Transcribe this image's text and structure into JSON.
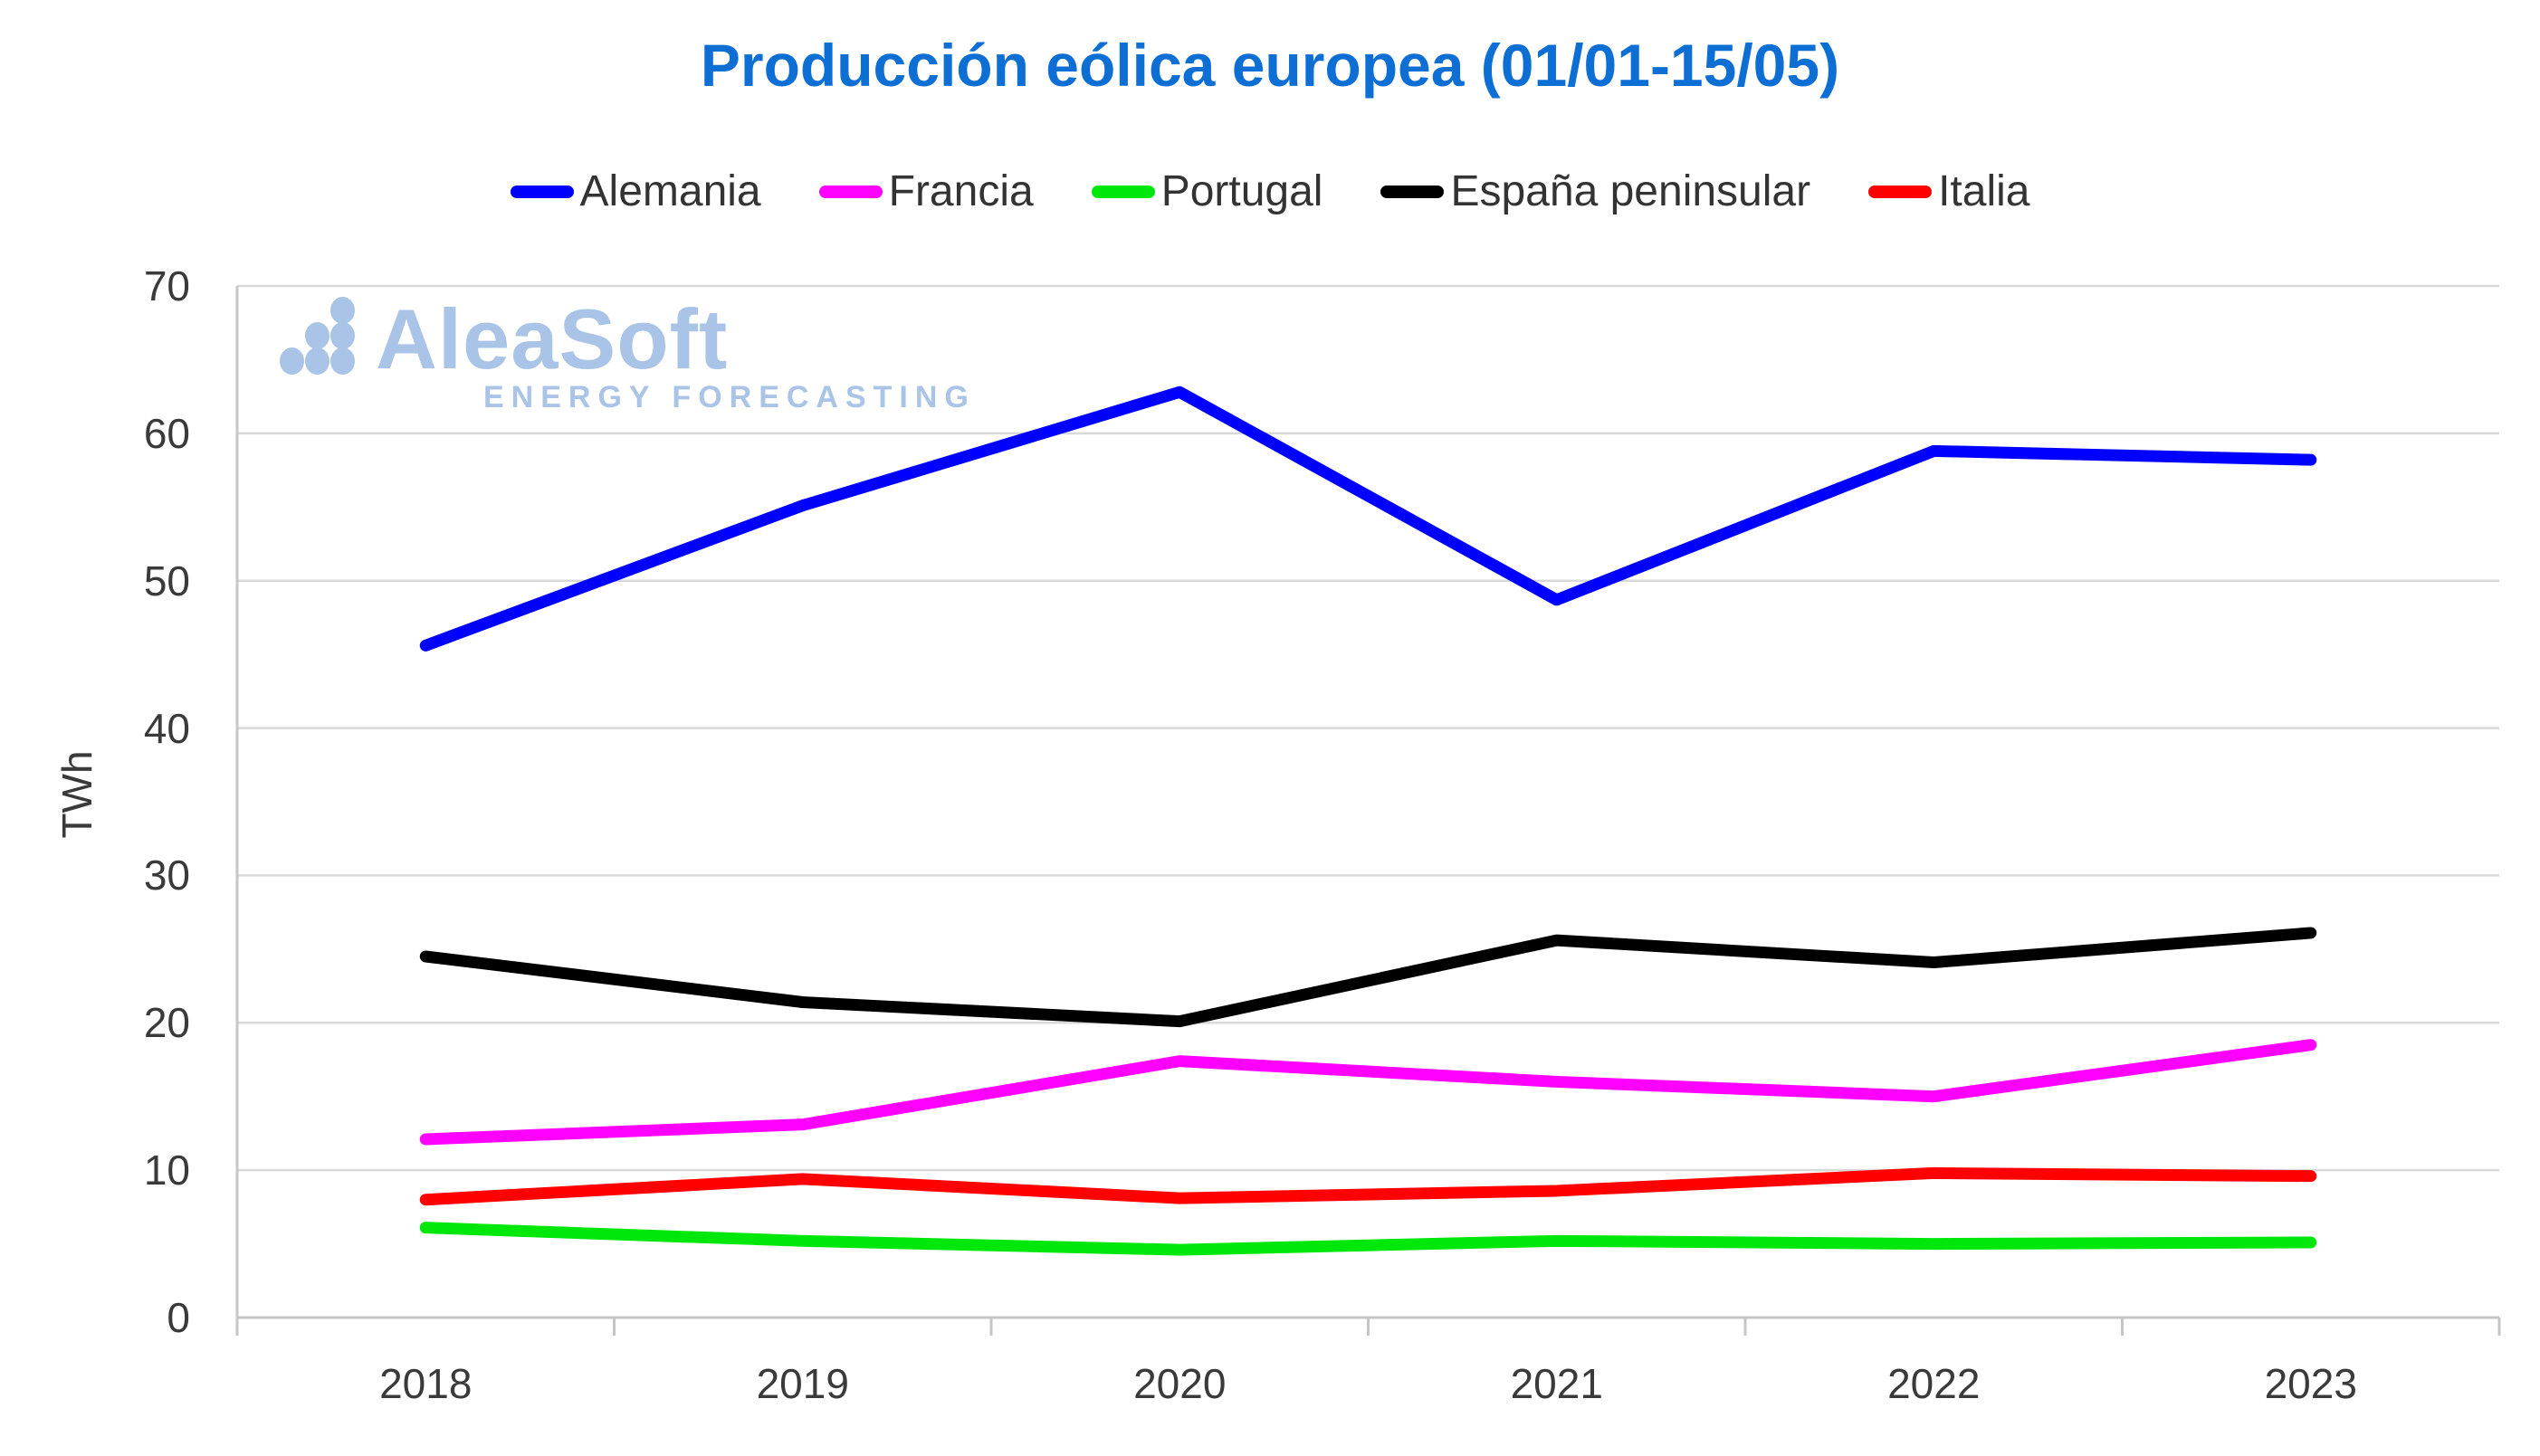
{
  "title": "Producción eólica europea (01/01-15/05)",
  "watermark": {
    "brand": "AleaSoft",
    "tagline": "ENERGY FORECASTING",
    "color": "#a9c4e6"
  },
  "colors": {
    "title": "#0d6ed3",
    "axis_text": "#3a3a3a",
    "legend_text": "#333333",
    "gridline": "#d8d8d8",
    "axis_line": "#c6c6c6"
  },
  "chart_data": {
    "type": "line",
    "title": "Producción eólica europea (01/01-15/05)",
    "xlabel": "",
    "ylabel": "TWh",
    "ylim": [
      0,
      70
    ],
    "ytick_step": 10,
    "grid": true,
    "legend_position": "top",
    "categories": [
      "2018",
      "2019",
      "2020",
      "2021",
      "2022",
      "2023"
    ],
    "series": [
      {
        "name": "Alemania",
        "color": "#0000fe",
        "values": [
          45.6,
          55.1,
          62.8,
          48.7,
          58.8,
          58.2
        ]
      },
      {
        "name": "Francia",
        "color": "#ff00fe",
        "values": [
          12.1,
          13.1,
          17.4,
          16.0,
          15.0,
          18.5
        ]
      },
      {
        "name": "Portugal",
        "color": "#00e80b",
        "values": [
          6.1,
          5.2,
          4.6,
          5.2,
          5.0,
          5.1
        ]
      },
      {
        "name": "España peninsular",
        "color": "#000000",
        "values": [
          24.5,
          21.4,
          20.1,
          25.6,
          24.1,
          26.1
        ]
      },
      {
        "name": "Italia",
        "color": "#fe0000",
        "values": [
          8.0,
          9.4,
          8.1,
          8.6,
          9.8,
          9.6
        ]
      }
    ]
  }
}
